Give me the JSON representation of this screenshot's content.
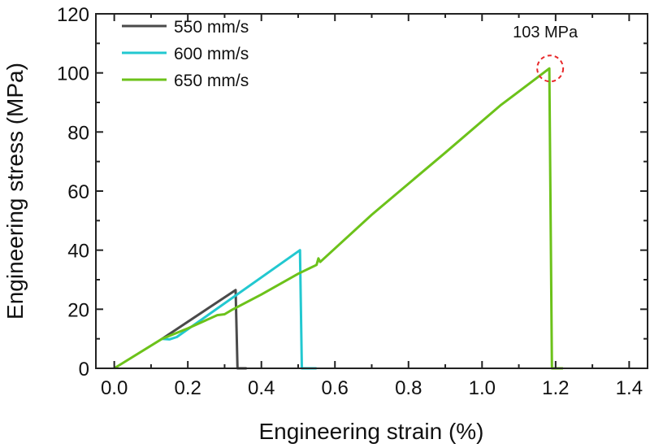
{
  "chart_data": {
    "type": "line",
    "title": "",
    "xlabel": "Engineering strain (%)",
    "ylabel": "Engineering stress (MPa)",
    "xlim": [
      -0.05,
      1.45
    ],
    "ylim": [
      0,
      120
    ],
    "xticks": [
      "0.0",
      "0.2",
      "0.4",
      "0.6",
      "0.8",
      "1.0",
      "1.2",
      "1.4"
    ],
    "yticks": [
      "0",
      "20",
      "40",
      "60",
      "80",
      "100",
      "120"
    ],
    "grid": false,
    "legend_position": "top-left",
    "series": [
      {
        "name": "550 mm/s",
        "color": "#4a4a4a",
        "x": [
          0.13,
          0.33,
          0.335,
          0.36
        ],
        "y": [
          10,
          26.5,
          0,
          0
        ]
      },
      {
        "name": "600 mm/s",
        "color": "#22c8d0",
        "x": [
          0.13,
          0.15,
          0.17,
          0.505,
          0.51,
          0.55
        ],
        "y": [
          10,
          9.8,
          10.6,
          40,
          0,
          0
        ]
      },
      {
        "name": "650 mm/s",
        "color": "#6cc21a",
        "x": [
          0.0,
          0.13,
          0.2,
          0.28,
          0.3,
          0.32,
          0.4,
          0.5,
          0.55,
          0.555,
          0.56,
          0.7,
          0.9,
          1.05,
          1.183,
          1.19,
          1.22
        ],
        "y": [
          0,
          10,
          13.5,
          18,
          18.3,
          19.8,
          25,
          32,
          35,
          37.2,
          36,
          52,
          73,
          89,
          101.5,
          0,
          0
        ]
      }
    ],
    "annotations": [
      {
        "text": "103 MPa",
        "x": 1.183,
        "y": 101.5,
        "marker": "dashed-circle",
        "color": "#e8282a"
      }
    ]
  }
}
